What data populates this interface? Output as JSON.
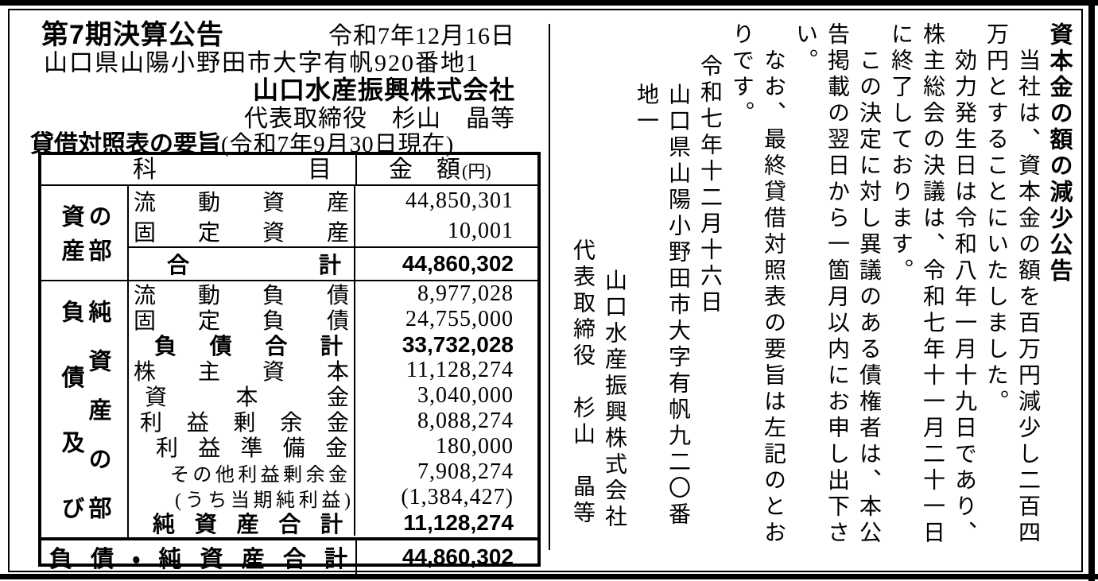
{
  "left_panel": {
    "title": "第7期決算公告",
    "date": "令和7年12月16日",
    "address": "山口県山陽小野田市大字有帆920番地1",
    "company": "山口水産振興株式会社",
    "representative": "代表取締役　杉山　晶等",
    "bs_title": "貸借対照表の要旨",
    "bs_asof": "(令和7年9月30日現在)",
    "table": {
      "header": {
        "subject": "科　目",
        "amount": "金　額",
        "unit": "(円)"
      },
      "assets": {
        "label_lines": [
          "資産",
          "の部"
        ],
        "rows": [
          {
            "label": "流動資産",
            "amount": "44,850,301"
          },
          {
            "label": "固定資産",
            "amount": "10,001"
          }
        ],
        "total": {
          "label": "合　計",
          "amount": "44,860,302"
        }
      },
      "liabilities": {
        "label_lines": [
          "負債及び",
          "純資産の部"
        ],
        "rows": [
          {
            "label": "流動負債",
            "amount": "8,977,028"
          },
          {
            "label": "固定負債",
            "amount": "24,755,000"
          },
          {
            "label": "負債合計",
            "amount": "33,732,028"
          },
          {
            "label": "株主資本",
            "amount": "11,128,274"
          },
          {
            "label": "資本金",
            "amount": "3,040,000"
          },
          {
            "label": "利益剰余金",
            "amount": "8,088,274"
          },
          {
            "label": "利益準備金",
            "amount": "180,000"
          },
          {
            "label": "その他利益剰余金",
            "amount": "7,908,274"
          },
          {
            "label": "(うち当期純利益)",
            "amount": "(1,384,427)"
          },
          {
            "label": "純資産合計",
            "amount": "11,128,274"
          }
        ]
      },
      "grand_total": {
        "label": "負債・純資産合計",
        "amount": "44,860,302"
      }
    }
  },
  "right_panel": {
    "heading": "資本金の額の減少公告",
    "paragraphs": [
      "当社は、資本金の額を百万円減少し二百四万円とすることにいたしました。",
      "効力発生日は令和八年一月十九日であり、株主総会の決議は、令和七年十一月二十一日に終了しております。",
      "この決定に対し異議のある債権者は、本公告掲載の翌日から一箇月以内にお申し出下さい。",
      "なお、最終貸借対照表の要旨は左記のとおりです。"
    ],
    "date": "令和七年十二月十六日",
    "address": "山口県山陽小野田市大字有帆九二〇番地一",
    "company": "山口水産振興株式会社",
    "representative": "代表取締役　杉山　晶等"
  },
  "colors": {
    "ink": "#000000",
    "paper": "#ffffff"
  }
}
